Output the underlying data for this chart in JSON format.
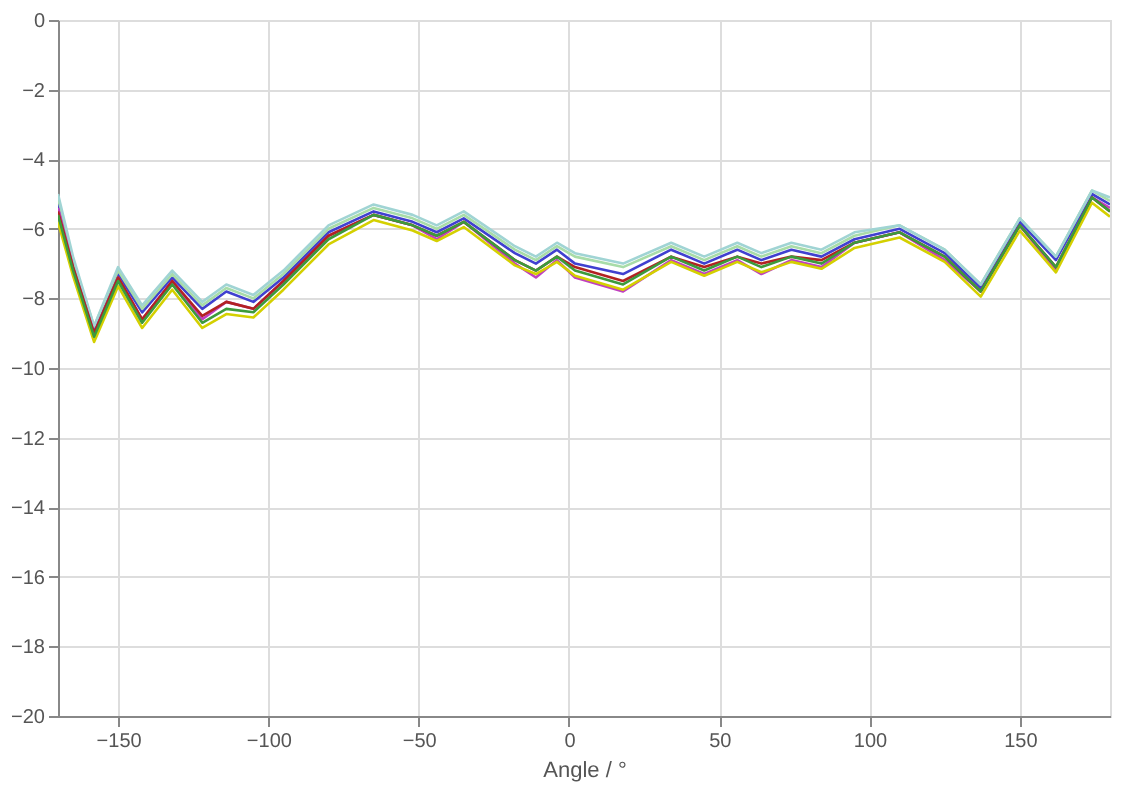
{
  "chart_data": {
    "type": "line",
    "xlabel": "Angle / °",
    "x": [
      -170,
      -165,
      -158,
      -150,
      -142,
      -132,
      -122,
      -114,
      -105,
      -95,
      -80,
      -65,
      -52,
      -44,
      -35,
      -18,
      -11,
      -4,
      2,
      18,
      34,
      45,
      56,
      64,
      74,
      84,
      95,
      110,
      125,
      137,
      150,
      162,
      174,
      180
    ],
    "series": [
      {
        "color": "#4040d0",
        "values": [
          -5.3,
          -7.0,
          -8.9,
          -7.3,
          -8.4,
          -7.4,
          -8.3,
          -7.8,
          -8.1,
          -7.4,
          -6.1,
          -5.5,
          -5.8,
          -6.1,
          -5.7,
          -6.7,
          -7.0,
          -6.6,
          -7.0,
          -7.3,
          -6.6,
          -7.0,
          -6.6,
          -6.9,
          -6.6,
          -6.8,
          -6.3,
          -6.0,
          -6.7,
          -7.7,
          -5.8,
          -6.9,
          -5.0,
          -5.3
        ]
      },
      {
        "color": "#a8dca8",
        "values": [
          -5.1,
          -6.9,
          -8.8,
          -7.2,
          -8.3,
          -7.3,
          -8.2,
          -7.7,
          -8.0,
          -7.3,
          -6.0,
          -5.4,
          -5.7,
          -6.0,
          -5.6,
          -6.6,
          -6.9,
          -6.5,
          -6.8,
          -7.1,
          -6.5,
          -6.9,
          -6.5,
          -6.8,
          -6.5,
          -6.7,
          -6.2,
          -5.9,
          -6.6,
          -7.6,
          -5.7,
          -6.8,
          -4.9,
          -5.2
        ]
      },
      {
        "color": "#a0d4d4",
        "values": [
          -5.0,
          -6.8,
          -8.8,
          -7.1,
          -8.2,
          -7.2,
          -8.1,
          -7.6,
          -7.9,
          -7.2,
          -5.9,
          -5.3,
          -5.6,
          -5.9,
          -5.5,
          -6.5,
          -6.8,
          -6.4,
          -6.7,
          -7.0,
          -6.4,
          -6.8,
          -6.4,
          -6.7,
          -6.4,
          -6.6,
          -6.1,
          -5.9,
          -6.6,
          -7.6,
          -5.7,
          -6.8,
          -4.9,
          -5.1
        ]
      },
      {
        "color": "#c040c0",
        "values": [
          -5.4,
          -7.1,
          -9.0,
          -7.4,
          -8.6,
          -7.5,
          -8.6,
          -8.1,
          -8.3,
          -7.5,
          -6.2,
          -5.6,
          -5.9,
          -6.3,
          -5.8,
          -7.0,
          -7.4,
          -6.9,
          -7.4,
          -7.8,
          -6.9,
          -7.3,
          -6.9,
          -7.3,
          -6.9,
          -7.1,
          -6.4,
          -6.1,
          -6.9,
          -7.8,
          -5.9,
          -7.2,
          -5.1,
          -5.4
        ]
      },
      {
        "color": "#b22222",
        "values": [
          -5.5,
          -7.1,
          -9.0,
          -7.4,
          -8.6,
          -7.5,
          -8.5,
          -8.1,
          -8.3,
          -7.5,
          -6.2,
          -5.6,
          -5.9,
          -6.2,
          -5.8,
          -6.9,
          -7.2,
          -6.8,
          -7.1,
          -7.5,
          -6.8,
          -7.1,
          -6.8,
          -7.0,
          -6.8,
          -6.9,
          -6.4,
          -6.1,
          -6.8,
          -7.8,
          -5.9,
          -7.1,
          -5.1,
          -5.5
        ]
      },
      {
        "color": "#d4d000",
        "values": [
          -5.8,
          -7.35,
          -9.25,
          -7.65,
          -8.85,
          -7.75,
          -8.85,
          -8.45,
          -8.55,
          -7.75,
          -6.45,
          -5.75,
          -6.05,
          -6.35,
          -5.95,
          -7.05,
          -7.3,
          -6.95,
          -7.35,
          -7.75,
          -6.95,
          -7.35,
          -6.95,
          -7.25,
          -6.95,
          -7.15,
          -6.55,
          -6.25,
          -6.95,
          -7.95,
          -6.05,
          -7.25,
          -5.25,
          -5.65
        ]
      },
      {
        "color": "#3c9a3c",
        "values": [
          -5.6,
          -7.2,
          -9.1,
          -7.5,
          -8.7,
          -7.6,
          -8.7,
          -8.3,
          -8.4,
          -7.6,
          -6.3,
          -5.6,
          -5.9,
          -6.2,
          -5.8,
          -6.9,
          -7.2,
          -6.8,
          -7.2,
          -7.6,
          -6.8,
          -7.2,
          -6.8,
          -7.1,
          -6.8,
          -7.0,
          -6.4,
          -6.1,
          -6.8,
          -7.8,
          -5.9,
          -7.1,
          -5.1,
          -5.5
        ]
      }
    ],
    "xlim": [
      -170,
      180
    ],
    "xticks": [
      -150,
      -100,
      -50,
      0,
      50,
      100,
      150
    ],
    "ylim": [
      -20,
      0
    ],
    "yticks": [
      0,
      -2,
      -4,
      -6,
      -8,
      -10,
      -12,
      -14,
      -16,
      -18,
      -20
    ],
    "grid": true,
    "line_style": "solid"
  }
}
